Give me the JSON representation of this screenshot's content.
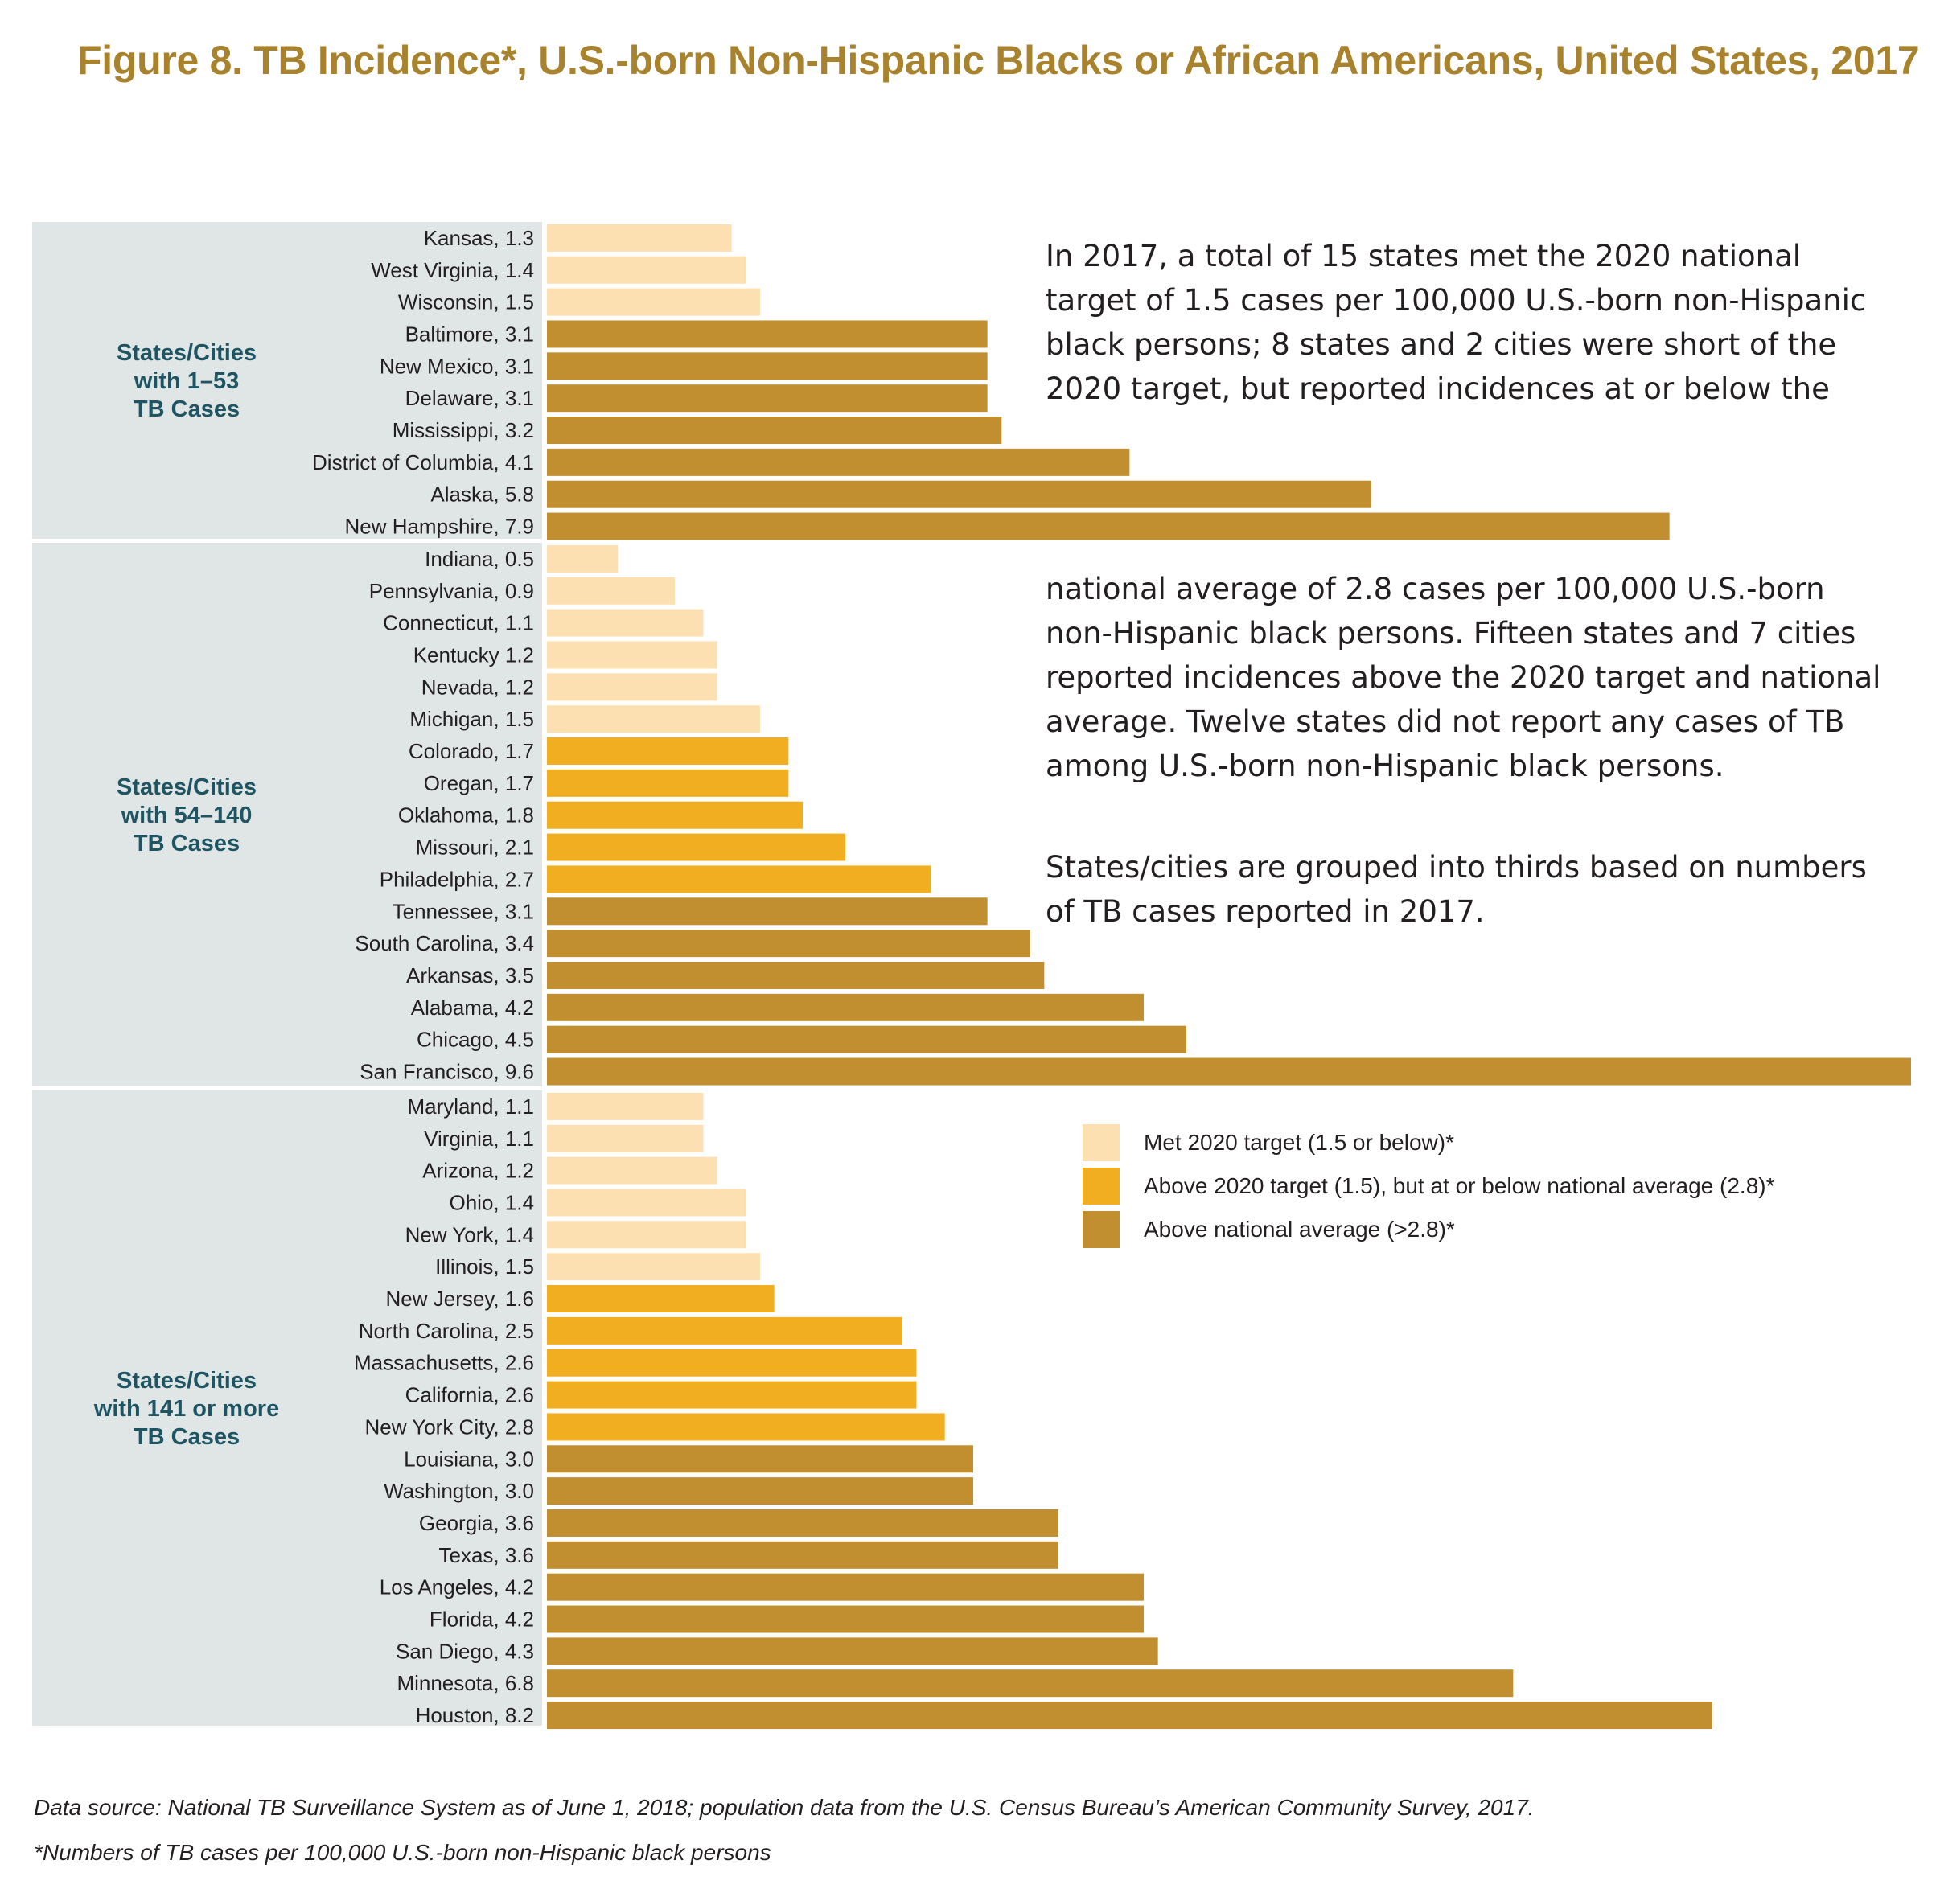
{
  "title": "Figure 8. TB Incidence*, U.S.-born Non-Hispanic Blacks or African Americans, United States, 2017",
  "notes": [
    "In 2017, a total of 15 states met the 2020 national target of 1.5 cases per 100,000 U.S.-born non-Hispanic black persons; 8 states and 2 cities were short of the 2020 target, but reported incidences at or below the",
    "national average of 2.8 cases per 100,000 U.S.-born non-Hispanic black persons.  Fifteen states and 7 cities reported incidences above the 2020 target and national average.  Twelve states did not report any cases of TB among U.S.-born non-Hispanic black persons.",
    "States/cities are grouped into thirds based on numbers of TB cases reported in 2017."
  ],
  "legend": [
    {
      "label": "Met 2020 target (1.5 or below)*",
      "color": "#fde0b2"
    },
    {
      "label": "Above 2020 target (1.5), but at or below national average (2.8)*",
      "color": "#f2ae21"
    },
    {
      "label": "Above national average (>2.8)*",
      "color": "#c18f30"
    }
  ],
  "footnotes": {
    "source": "Data source: National TB Surveillance System as of June 1, 2018; population data from the U.S. Census Bureau’s American Community Survey, 2017.",
    "unit": "*Numbers of TB cases per 100,000 U.S.-born non-Hispanic black persons"
  },
  "colors": {
    "title": "#a8822c",
    "group_panel": "#dfe6e5",
    "group_label": "#1f5563",
    "met_target": "#fde0b2",
    "above_target": "#f2ae21",
    "above_average": "#c18f30"
  },
  "chart_data": {
    "type": "bar",
    "orientation": "horizontal",
    "title": "Figure 8. TB Incidence*, U.S.-born Non-Hispanic Blacks or African Americans, United States, 2017",
    "xlim": [
      0,
      9.6
    ],
    "grid": false,
    "legend_position": "right",
    "groups": [
      {
        "label": [
          "States/Cities",
          "with 1–53",
          "TB Cases"
        ],
        "items": [
          {
            "label": "Kansas, 1.3",
            "value": 1.3,
            "tier": "met"
          },
          {
            "label": "West Virginia, 1.4",
            "value": 1.4,
            "tier": "met"
          },
          {
            "label": "Wisconsin, 1.5",
            "value": 1.5,
            "tier": "met"
          },
          {
            "label": "Baltimore, 3.1",
            "value": 3.1,
            "tier": "above_avg"
          },
          {
            "label": "New Mexico, 3.1",
            "value": 3.1,
            "tier": "above_avg"
          },
          {
            "label": "Delaware, 3.1",
            "value": 3.1,
            "tier": "above_avg"
          },
          {
            "label": "Mississippi, 3.2",
            "value": 3.2,
            "tier": "above_avg"
          },
          {
            "label": "District of Columbia, 4.1",
            "value": 4.1,
            "tier": "above_avg"
          },
          {
            "label": "Alaska, 5.8",
            "value": 5.8,
            "tier": "above_avg"
          },
          {
            "label": "New Hampshire, 7.9",
            "value": 7.9,
            "tier": "above_avg"
          }
        ]
      },
      {
        "label": [
          "States/Cities",
          "with 54–140",
          "TB Cases"
        ],
        "items": [
          {
            "label": "Indiana, 0.5",
            "value": 0.5,
            "tier": "met"
          },
          {
            "label": "Pennsylvania, 0.9",
            "value": 0.9,
            "tier": "met"
          },
          {
            "label": "Connecticut, 1.1",
            "value": 1.1,
            "tier": "met"
          },
          {
            "label": "Kentucky 1.2",
            "value": 1.2,
            "tier": "met"
          },
          {
            "label": "Nevada, 1.2",
            "value": 1.2,
            "tier": "met"
          },
          {
            "label": "Michigan, 1.5",
            "value": 1.5,
            "tier": "met"
          },
          {
            "label": "Colorado, 1.7",
            "value": 1.7,
            "tier": "above_target"
          },
          {
            "label": "Oregan, 1.7",
            "value": 1.7,
            "tier": "above_target"
          },
          {
            "label": "Oklahoma, 1.8",
            "value": 1.8,
            "tier": "above_target"
          },
          {
            "label": "Missouri, 2.1",
            "value": 2.1,
            "tier": "above_target"
          },
          {
            "label": "Philadelphia, 2.7",
            "value": 2.7,
            "tier": "above_target"
          },
          {
            "label": "Tennessee, 3.1",
            "value": 3.1,
            "tier": "above_avg"
          },
          {
            "label": "South Carolina, 3.4",
            "value": 3.4,
            "tier": "above_avg"
          },
          {
            "label": "Arkansas, 3.5",
            "value": 3.5,
            "tier": "above_avg"
          },
          {
            "label": "Alabama, 4.2",
            "value": 4.2,
            "tier": "above_avg"
          },
          {
            "label": "Chicago, 4.5",
            "value": 4.5,
            "tier": "above_avg"
          },
          {
            "label": "San Francisco, 9.6",
            "value": 9.6,
            "tier": "above_avg"
          }
        ]
      },
      {
        "label": [
          "States/Cities",
          "with 141 or more",
          "TB Cases"
        ],
        "items": [
          {
            "label": "Maryland, 1.1",
            "value": 1.1,
            "tier": "met"
          },
          {
            "label": "Virginia, 1.1",
            "value": 1.1,
            "tier": "met"
          },
          {
            "label": "Arizona, 1.2",
            "value": 1.2,
            "tier": "met"
          },
          {
            "label": "Ohio, 1.4",
            "value": 1.4,
            "tier": "met"
          },
          {
            "label": "New York, 1.4",
            "value": 1.4,
            "tier": "met"
          },
          {
            "label": "Illinois, 1.5",
            "value": 1.5,
            "tier": "met"
          },
          {
            "label": "New Jersey, 1.6",
            "value": 1.6,
            "tier": "above_target"
          },
          {
            "label": "North Carolina, 2.5",
            "value": 2.5,
            "tier": "above_target"
          },
          {
            "label": "Massachusetts, 2.6",
            "value": 2.6,
            "tier": "above_target"
          },
          {
            "label": "California, 2.6",
            "value": 2.6,
            "tier": "above_target"
          },
          {
            "label": "New York City, 2.8",
            "value": 2.8,
            "tier": "above_target"
          },
          {
            "label": "Louisiana, 3.0",
            "value": 3.0,
            "tier": "above_avg"
          },
          {
            "label": "Washington, 3.0",
            "value": 3.0,
            "tier": "above_avg"
          },
          {
            "label": "Georgia, 3.6",
            "value": 3.6,
            "tier": "above_avg"
          },
          {
            "label": "Texas, 3.6",
            "value": 3.6,
            "tier": "above_avg"
          },
          {
            "label": "Los Angeles, 4.2",
            "value": 4.2,
            "tier": "above_avg"
          },
          {
            "label": "Florida, 4.2",
            "value": 4.2,
            "tier": "above_avg"
          },
          {
            "label": "San Diego, 4.3",
            "value": 4.3,
            "tier": "above_avg"
          },
          {
            "label": "Minnesota, 6.8",
            "value": 6.8,
            "tier": "above_avg"
          },
          {
            "label": "Houston, 8.2",
            "value": 8.2,
            "tier": "above_avg"
          }
        ]
      }
    ]
  }
}
